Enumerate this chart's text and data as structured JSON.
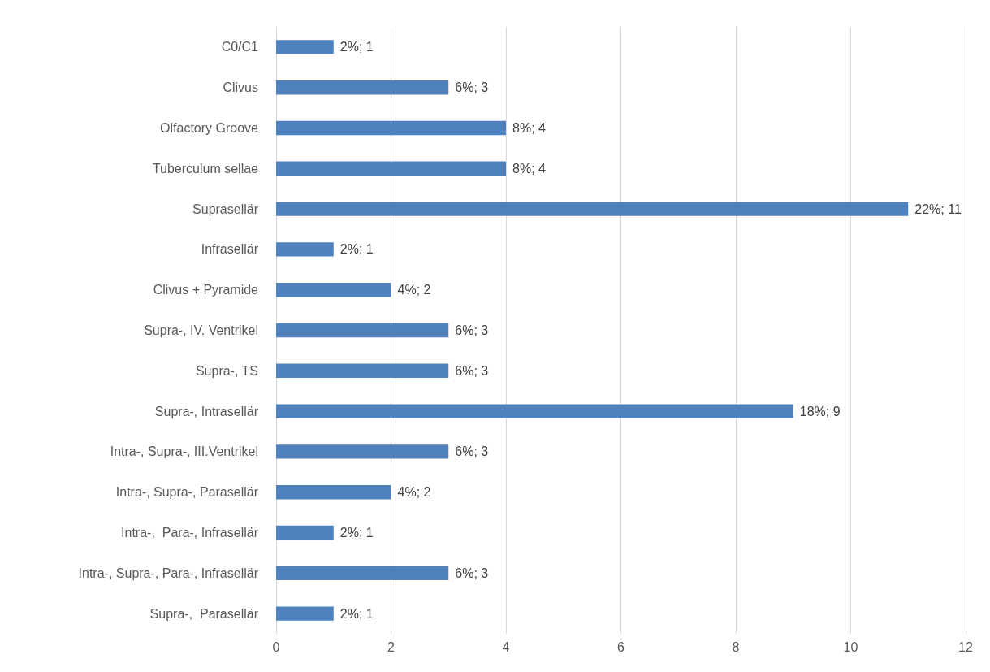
{
  "chart_data": {
    "type": "bar",
    "orientation": "horizontal",
    "categories": [
      "C0/C1",
      "Clivus",
      "Olfactory Groove",
      "Tuberculum sellae",
      "Suprasellär",
      "Infrasellär",
      "Clivus + Pyramide",
      "Supra-, IV. Ventrikel",
      "Supra-, TS",
      "Supra-, Intrasellär",
      "Intra-, Supra-, III.Ventrikel",
      "Intra-, Supra-, Parasellär",
      "Intra-,  Para-, Infrasellär",
      "Intra-, Supra-, Para-, Infrasellär",
      "Supra-,  Parasellär"
    ],
    "values": [
      1,
      3,
      4,
      4,
      11,
      1,
      2,
      3,
      3,
      9,
      3,
      2,
      1,
      3,
      1
    ],
    "value_labels": [
      "2%; 1",
      "6%; 3",
      "8%; 4",
      "8%; 4",
      "22%; 11",
      "2%; 1",
      "4%; 2",
      "6%; 3",
      "6%; 3",
      "18%; 9",
      "6%; 3",
      "4%; 2",
      "2%; 1",
      "6%; 3",
      "2%; 1"
    ],
    "color": "#4f81bd",
    "xlim": [
      0,
      12
    ],
    "xticks": [
      0,
      2,
      4,
      6,
      8,
      10,
      12
    ],
    "grid": "x"
  }
}
